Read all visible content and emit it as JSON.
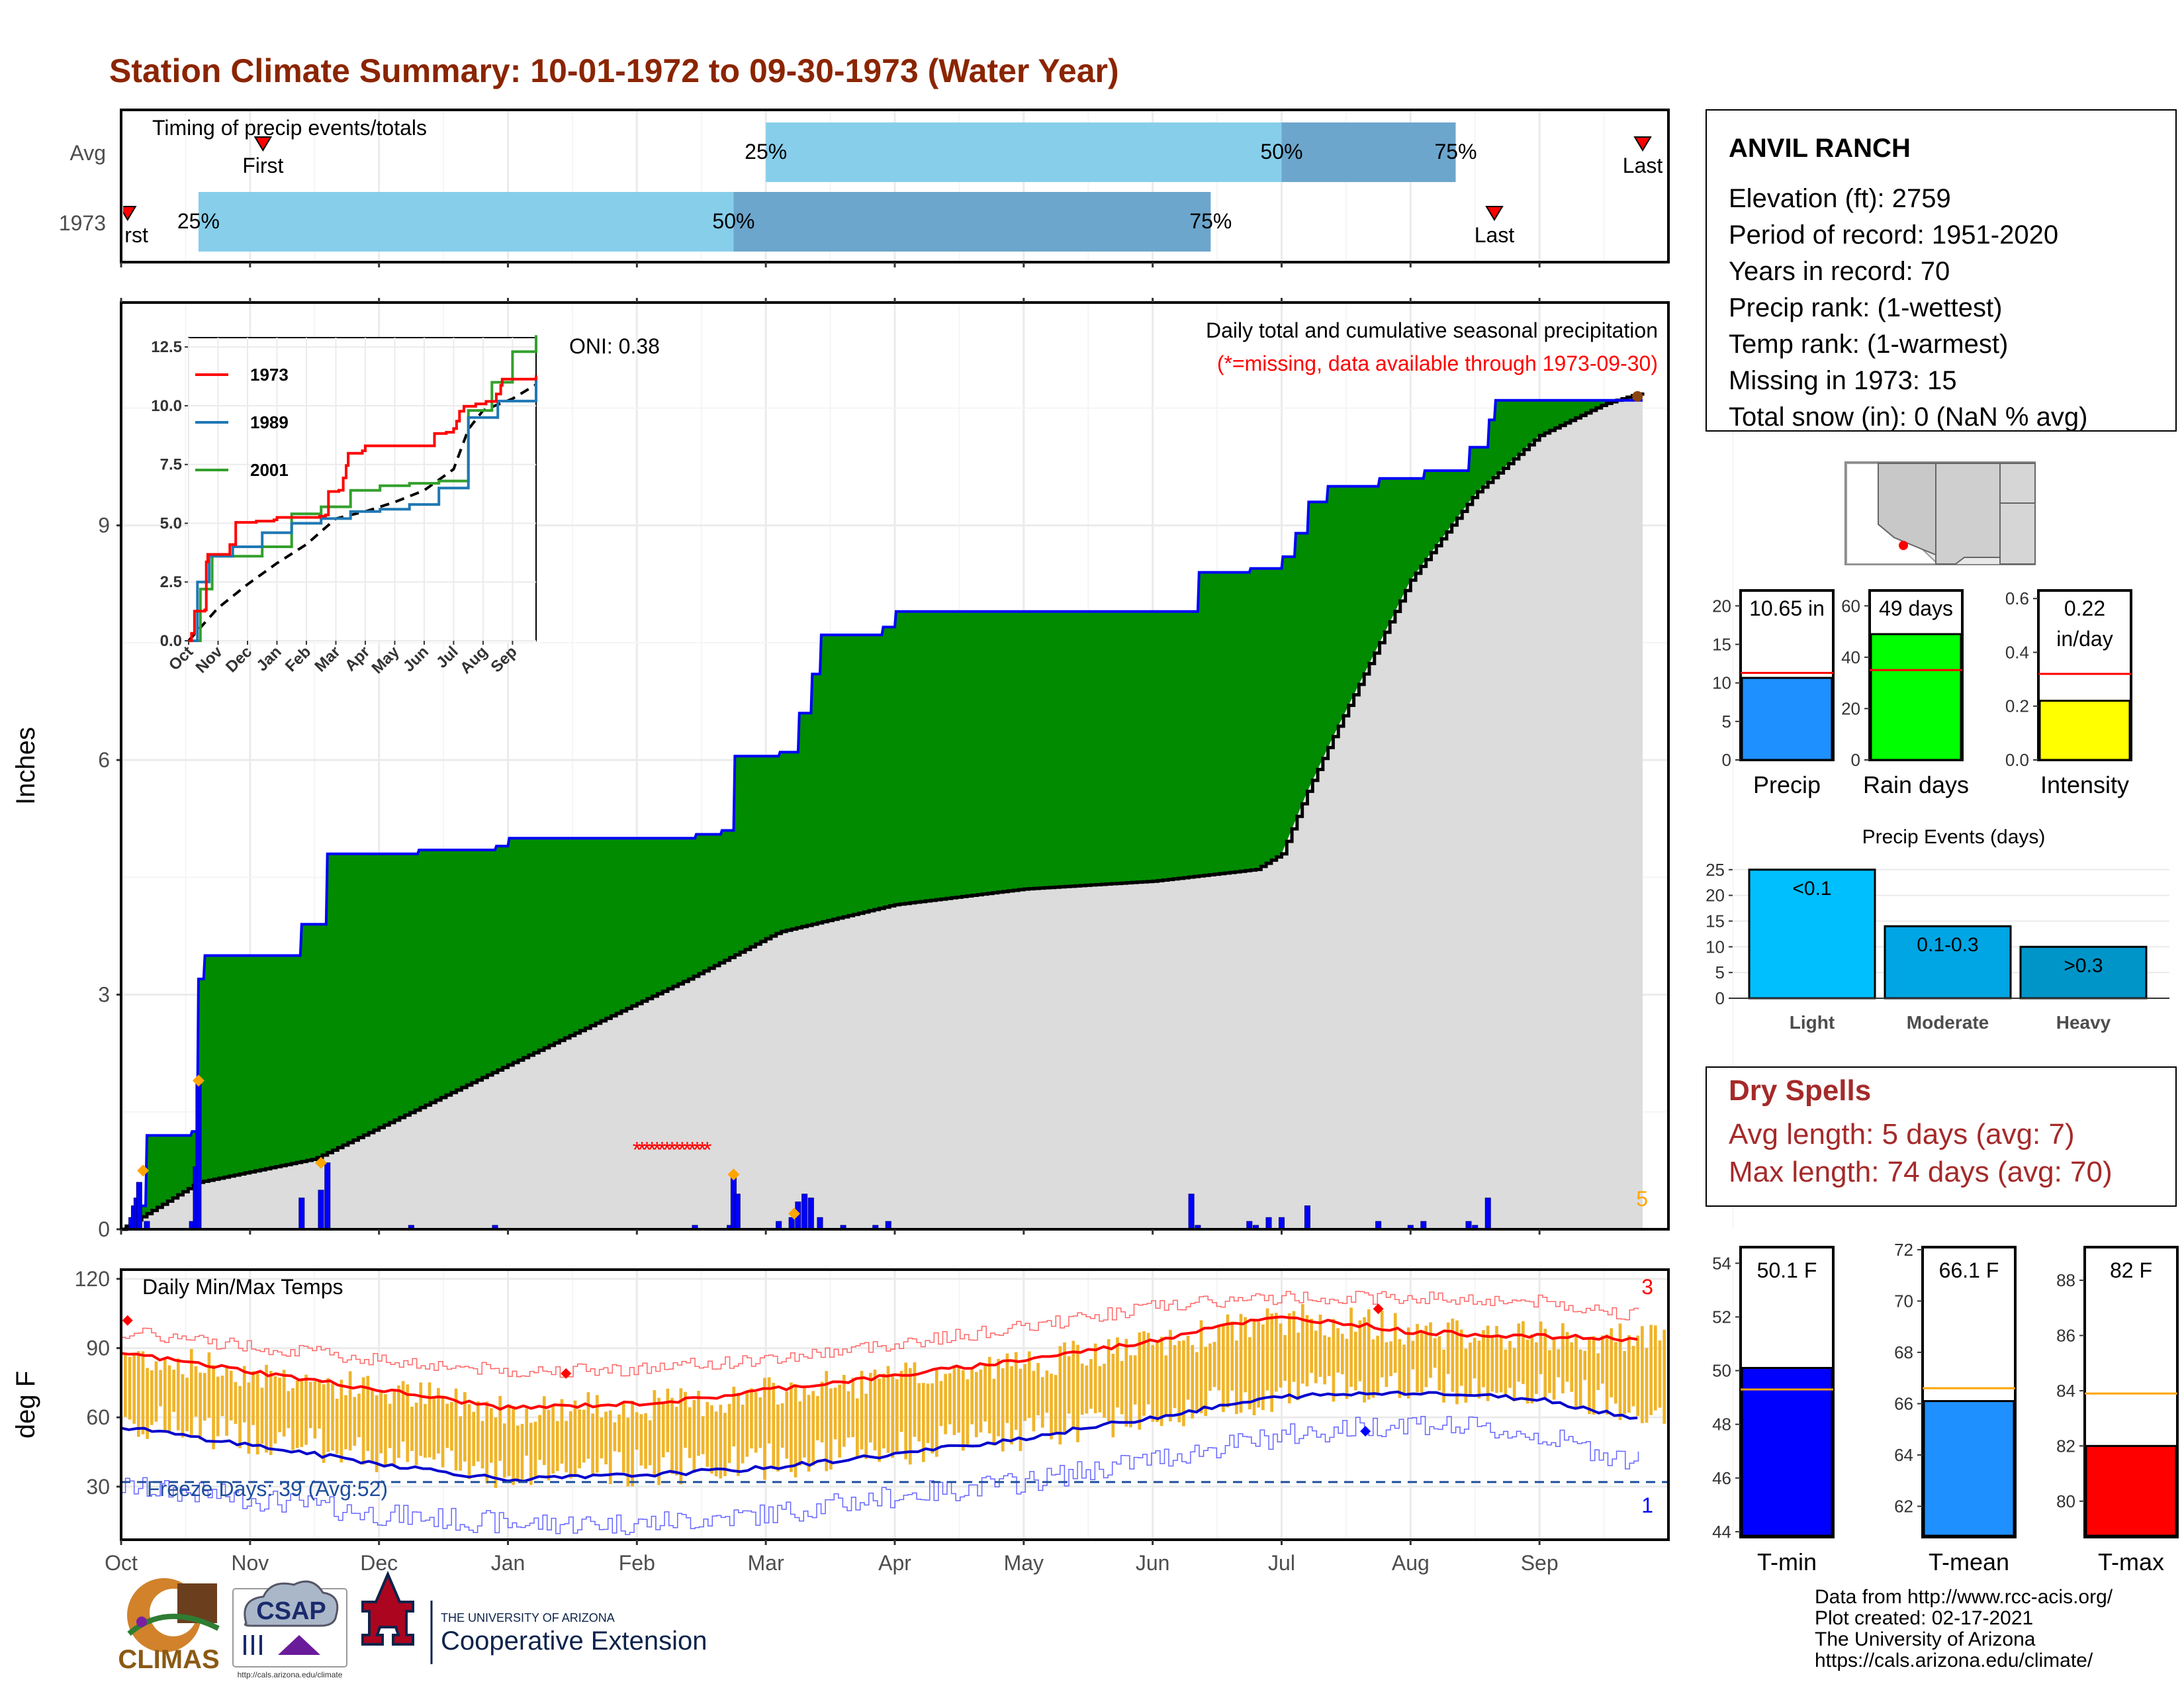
{
  "title": "Station Climate Summary: 10-01-1972 to 09-30-1973 (Water Year)",
  "colors": {
    "title": "#8b2500",
    "light_blue": "#87ceeb",
    "mid_blue": "#6ca6cd",
    "green": "#008b00",
    "gray_fill": "#dcdcdc",
    "blue": "#0000ff",
    "red": "#ff0000",
    "orange": "#ffa500",
    "temp_bar": "#f0b429",
    "yellow": "#ffff00",
    "lime": "#00ff00",
    "dodger": "#1e90ff",
    "dry_spells": "#a52a2a"
  },
  "months": [
    "Oct",
    "Nov",
    "Dec",
    "Jan",
    "Feb",
    "Mar",
    "Apr",
    "May",
    "Jun",
    "Jul",
    "Aug",
    "Sep"
  ],
  "timing": {
    "title": "Timing of precip events/totals",
    "rows": [
      {
        "label": "Avg",
        "first_label": "First",
        "last_label": "Last",
        "p25_label": "25%",
        "p50_label": "50%",
        "p75_label": "75%",
        "first": 1.1,
        "p25": 5.0,
        "p50": 9.0,
        "p75": 10.35,
        "last": 11.8
      },
      {
        "label": "1973",
        "first_label": "First",
        "last_label": "Last",
        "p25_label": "25%",
        "p50_label": "50%",
        "p75_label": "75%",
        "first": 0.05,
        "p25": 0.6,
        "p50": 4.75,
        "p75": 8.45,
        "last": 10.65
      }
    ]
  },
  "precip": {
    "ylabel": "Inches",
    "yticks": [
      "0",
      "3",
      "6",
      "9"
    ],
    "caption1": "Daily total and cumulative seasonal precipitation",
    "caption2": "(*=missing, data available through 1973-09-30)",
    "oni": "ONI: 0.38",
    "corner_count": "5",
    "missing_symbol": "*"
  },
  "inset": {
    "yticks": [
      "0.0",
      "2.5",
      "5.0",
      "7.5",
      "10.0",
      "12.5"
    ],
    "legend": [
      {
        "name": "1973",
        "color": "#ff0000"
      },
      {
        "name": "1989",
        "color": "#1f78b4"
      },
      {
        "name": "2001",
        "color": "#33a02c"
      }
    ]
  },
  "temps": {
    "title": "Daily Min/Max Temps",
    "ylabel": "deg F",
    "yticks": [
      "30",
      "60",
      "90",
      "120"
    ],
    "freeze": "Freeze Days: 39 (Avg:52)",
    "count_hi": "3",
    "count_lo": "1"
  },
  "station": {
    "name": "ANVIL RANCH",
    "lines": [
      "Elevation (ft): 2759",
      "Period of record: 1951-2020",
      "Years in record: 70",
      "Precip rank:  (1-wettest)",
      "Temp rank:  (1-warmest)",
      "Missing in 1973: 15",
      "Total snow (in): 0 (NaN % avg)"
    ]
  },
  "summary_bars": [
    {
      "label": "Precip",
      "value_label": "10.65 in",
      "value": 10.65,
      "avg": 11.3,
      "ymax": 22,
      "yticks": [
        "0",
        "5",
        "10",
        "15",
        "20"
      ],
      "tick_vals": [
        0,
        5,
        10,
        15,
        20
      ],
      "color": "#1e90ff"
    },
    {
      "label": "Rain days",
      "value_label": "49 days",
      "value": 49,
      "avg": 35,
      "ymax": 66,
      "yticks": [
        "0",
        "20",
        "40",
        "60"
      ],
      "tick_vals": [
        0,
        20,
        40,
        60
      ],
      "color": "#00ff00"
    },
    {
      "label": "Intensity",
      "value_label": "0.22",
      "value_label2": "in/day",
      "value": 0.22,
      "avg": 0.32,
      "ymax": 0.63,
      "yticks": [
        "0.0",
        "0.2",
        "0.4",
        "0.6"
      ],
      "tick_vals": [
        0,
        0.2,
        0.4,
        0.6
      ],
      "color": "#ffff00"
    }
  ],
  "events": {
    "title": "Precip Events (days)",
    "yticks": [
      "0",
      "5",
      "10",
      "15",
      "20",
      "25"
    ],
    "bars": [
      {
        "category": "Light",
        "label": "<0.1",
        "value": 25,
        "color": "#00bfff"
      },
      {
        "category": "Moderate",
        "label": "0.1-0.3",
        "value": 14,
        "color": "#00a5e3"
      },
      {
        "category": "Heavy",
        "label": ">0.3",
        "value": 10,
        "color": "#0095c8"
      }
    ]
  },
  "dry_spells": {
    "title": "Dry Spells",
    "line1": "Avg length: 5 days (avg: 7)",
    "line2": "Max length: 74 days (avg: 70)"
  },
  "temp_bars": [
    {
      "label": "T-min",
      "value_label": "50.1 F",
      "value": 50.1,
      "avg": 49.3,
      "ymin": 43.8,
      "ymax": 54.6,
      "yticks": [
        "44",
        "46",
        "48",
        "50",
        "52",
        "54"
      ],
      "tick_vals": [
        44,
        46,
        48,
        50,
        52,
        54
      ],
      "color": "#0000ff"
    },
    {
      "label": "T-mean",
      "value_label": "66.1 F",
      "value": 66.1,
      "avg": 66.6,
      "ymin": 60.8,
      "ymax": 72.1,
      "yticks": [
        "62",
        "64",
        "66",
        "68",
        "70",
        "72"
      ],
      "tick_vals": [
        62,
        64,
        66,
        68,
        70,
        72
      ],
      "color": "#1e90ff"
    },
    {
      "label": "T-max",
      "value_label": "82 F",
      "value": 82,
      "avg": 83.9,
      "ymin": 78.7,
      "ymax": 89.2,
      "yticks": [
        "80",
        "82",
        "84",
        "86",
        "88"
      ],
      "tick_vals": [
        80,
        82,
        84,
        86,
        88
      ],
      "color": "#ff0000"
    }
  ],
  "footer": {
    "lines": [
      "Data from http://www.rcc-acis.org/",
      "Plot created: 02-17-2021",
      "The University of Arizona",
      "https://cals.arizona.edu/climate/"
    ],
    "climas": "CLIMAS",
    "csap": "CSAP",
    "csap_url": "http://cals.arizona.edu/climate",
    "ua_small": "THE UNIVERSITY OF ARIZONA",
    "ua_big": "Cooperative Extension"
  },
  "chart_data": [
    {
      "type": "area",
      "title": "Daily total and cumulative seasonal precipitation",
      "ylabel": "Inches",
      "ylim": [
        0,
        11.8
      ],
      "x_months": [
        "Oct",
        "Nov",
        "Dec",
        "Jan",
        "Feb",
        "Mar",
        "Apr",
        "May",
        "Jun",
        "Jul",
        "Aug",
        "Sep"
      ],
      "cumulative_1973": [
        [
          0,
          0
        ],
        [
          0.1,
          0.3
        ],
        [
          0.2,
          1.2
        ],
        [
          0.55,
          1.25
        ],
        [
          0.6,
          3.2
        ],
        [
          0.65,
          3.5
        ],
        [
          1.4,
          3.5
        ],
        [
          1.4,
          3.9
        ],
        [
          1.55,
          3.9
        ],
        [
          1.6,
          4.8
        ],
        [
          2.3,
          4.85
        ],
        [
          2.9,
          4.9
        ],
        [
          3.0,
          5.0
        ],
        [
          4.4,
          5.0
        ],
        [
          4.45,
          5.05
        ],
        [
          4.6,
          5.05
        ],
        [
          4.65,
          5.1
        ],
        [
          4.72,
          5.1
        ],
        [
          4.75,
          6.05
        ],
        [
          5.1,
          6.1
        ],
        [
          5.25,
          6.6
        ],
        [
          5.35,
          7.1
        ],
        [
          5.42,
          7.6
        ],
        [
          5.6,
          7.6
        ],
        [
          5.9,
          7.7
        ],
        [
          6.0,
          7.9
        ],
        [
          8.3,
          7.9
        ],
        [
          8.35,
          8.4
        ],
        [
          8.75,
          8.45
        ],
        [
          9.0,
          8.6
        ],
        [
          9.1,
          8.9
        ],
        [
          9.2,
          9.3
        ],
        [
          9.35,
          9.5
        ],
        [
          9.75,
          9.6
        ],
        [
          10.1,
          9.7
        ],
        [
          10.45,
          10.0
        ],
        [
          10.6,
          10.35
        ],
        [
          10.65,
          10.6
        ],
        [
          11.6,
          10.6
        ],
        [
          11.8,
          10.75
        ]
      ],
      "average_cumulative": [
        [
          0,
          0
        ],
        [
          0.6,
          0.6
        ],
        [
          1.5,
          0.9
        ],
        [
          3.0,
          2.1
        ],
        [
          4.4,
          3.2
        ],
        [
          5.1,
          3.8
        ],
        [
          6.0,
          4.15
        ],
        [
          7.0,
          4.35
        ],
        [
          8.0,
          4.45
        ],
        [
          8.8,
          4.6
        ],
        [
          9.0,
          4.8
        ],
        [
          9.2,
          5.6
        ],
        [
          9.4,
          6.3
        ],
        [
          10.0,
          8.3
        ],
        [
          10.5,
          9.4
        ],
        [
          11.0,
          10.15
        ],
        [
          11.5,
          10.55
        ],
        [
          11.8,
          10.7
        ]
      ],
      "daily": [
        [
          0.08,
          0.15
        ],
        [
          0.1,
          0.3
        ],
        [
          0.12,
          0.4
        ],
        [
          0.14,
          0.6
        ],
        [
          0.2,
          0.1
        ],
        [
          0.55,
          0.1
        ],
        [
          0.58,
          0.8
        ],
        [
          0.6,
          1.9
        ],
        [
          1.4,
          0.4
        ],
        [
          1.55,
          0.5
        ],
        [
          1.6,
          0.85
        ],
        [
          2.25,
          0.05
        ],
        [
          2.9,
          0.05
        ],
        [
          4.45,
          0.05
        ],
        [
          4.72,
          0.05
        ],
        [
          4.75,
          0.7
        ],
        [
          4.78,
          0.45
        ],
        [
          5.1,
          0.1
        ],
        [
          5.2,
          0.15
        ],
        [
          5.25,
          0.35
        ],
        [
          5.3,
          0.45
        ],
        [
          5.35,
          0.4
        ],
        [
          5.42,
          0.15
        ],
        [
          5.6,
          0.05
        ],
        [
          5.85,
          0.05
        ],
        [
          5.95,
          0.1
        ],
        [
          8.3,
          0.45
        ],
        [
          8.35,
          0.05
        ],
        [
          8.75,
          0.1
        ],
        [
          8.8,
          0.05
        ],
        [
          8.9,
          0.15
        ],
        [
          9.0,
          0.15
        ],
        [
          9.2,
          0.3
        ],
        [
          9.75,
          0.1
        ],
        [
          10.0,
          0.05
        ],
        [
          10.1,
          0.1
        ],
        [
          10.45,
          0.1
        ],
        [
          10.5,
          0.05
        ],
        [
          10.6,
          0.4
        ]
      ]
    },
    {
      "type": "line",
      "title": "Daily Min/Max Temps",
      "ylabel": "deg F",
      "ylim": [
        7,
        120
      ],
      "avg_max": [
        [
          0,
          88
        ],
        [
          1,
          80
        ],
        [
          2,
          72
        ],
        [
          3,
          64
        ],
        [
          4,
          66
        ],
        [
          4.5,
          68
        ],
        [
          5,
          72
        ],
        [
          6,
          78
        ],
        [
          7,
          85
        ],
        [
          8,
          93
        ],
        [
          8.5,
          100
        ],
        [
          9,
          103
        ],
        [
          9.5,
          101
        ],
        [
          10,
          97
        ],
        [
          11,
          95
        ],
        [
          11.8,
          94
        ]
      ],
      "avg_min": [
        [
          0,
          56
        ],
        [
          1,
          48
        ],
        [
          2,
          40
        ],
        [
          3,
          33
        ],
        [
          4,
          35
        ],
        [
          5,
          38
        ],
        [
          6,
          44
        ],
        [
          7,
          51
        ],
        [
          8,
          60
        ],
        [
          9,
          69
        ],
        [
          10,
          71
        ],
        [
          11,
          68
        ],
        [
          11.8,
          59
        ]
      ],
      "record_max": [
        [
          0,
          97
        ],
        [
          2,
          85
        ],
        [
          3,
          80
        ],
        [
          4,
          81
        ],
        [
          5,
          85
        ],
        [
          6,
          92
        ],
        [
          7,
          99
        ],
        [
          8,
          108
        ],
        [
          9,
          112
        ],
        [
          10,
          112
        ],
        [
          11,
          110
        ],
        [
          11.8,
          104
        ]
      ],
      "record_min": [
        [
          0,
          30
        ],
        [
          1,
          25
        ],
        [
          2,
          18
        ],
        [
          3,
          14
        ],
        [
          4,
          14
        ],
        [
          5,
          18
        ],
        [
          6,
          26
        ],
        [
          7,
          32
        ],
        [
          8,
          42
        ],
        [
          9,
          52
        ],
        [
          10,
          58
        ],
        [
          11,
          52
        ],
        [
          11.8,
          40
        ]
      ],
      "freeze_line": 32
    }
  ]
}
